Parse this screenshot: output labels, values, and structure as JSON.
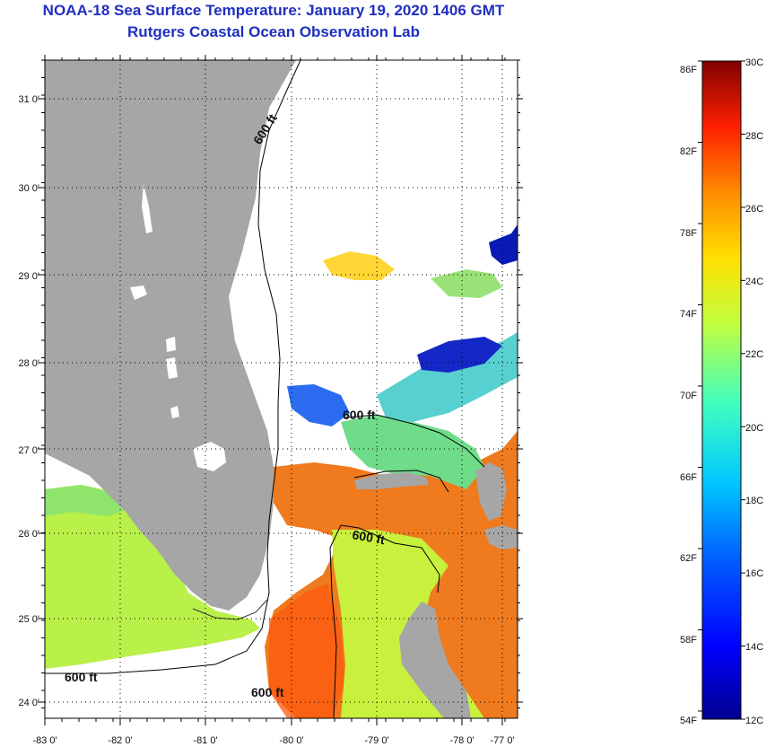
{
  "header": {
    "title": "NOAA-18 Sea Surface Temperature:  January 19, 2020 1406 GMT",
    "subtitle": "Rutgers Coastal Ocean Observation Lab"
  },
  "map": {
    "longitude_labels": [
      "-83 0'",
      "-82 0'",
      "-81 0'",
      "-80 0'",
      "-79 0'",
      "-78 0'",
      "-77 0'"
    ],
    "latitude_labels": [
      "31 0'",
      "30 0'",
      "29 0'",
      "28 0'",
      "27 0'",
      "26 0'",
      "25 0'",
      "24 0'"
    ],
    "contour_labels": [
      "600 ft",
      "600 ft",
      "600 ft",
      "600 ft",
      "600 ft"
    ],
    "colors": {
      "land": "#a6a6a6",
      "cloud": "#ffffff",
      "contour": "#000000"
    }
  },
  "colorbar": {
    "fahrenheit_labels": [
      "86F",
      "82F",
      "78F",
      "74F",
      "70F",
      "66F",
      "62F",
      "58F",
      "54F"
    ],
    "celsius_labels": [
      "30C",
      "28C",
      "26C",
      "24C",
      "22C",
      "20C",
      "18C",
      "16C",
      "14C",
      "12C"
    ],
    "celsius_range": [
      12,
      30
    ],
    "fahrenheit_range": [
      54,
      86
    ]
  }
}
